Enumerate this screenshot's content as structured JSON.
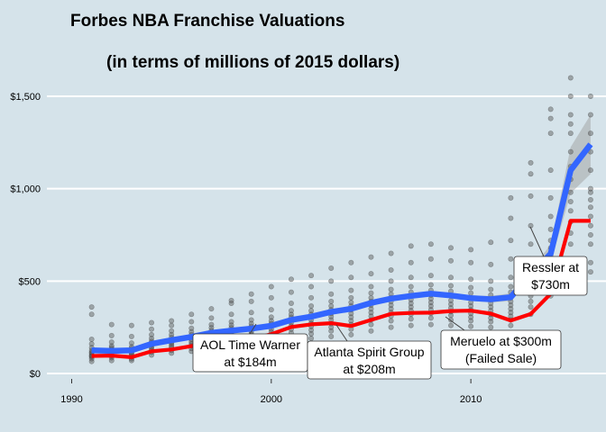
{
  "chart_data": {
    "type": "line",
    "title": "Forbes NBA Franchise Valuations",
    "subtitle": "(in terms of millions of 2015 dollars)",
    "xlabel": "",
    "ylabel": "",
    "xlim": [
      1990,
      2016.5
    ],
    "ylim": [
      0,
      1500
    ],
    "x_ticks": [
      1990,
      2000,
      2010
    ],
    "x_tick_labels": [
      "1990",
      "2000",
      "2010"
    ],
    "y_ticks": [
      0,
      500,
      1000,
      1500
    ],
    "y_tick_labels": [
      "$0",
      "$500",
      "$1,000",
      "$1,500"
    ],
    "grid": "horizontal",
    "legend": "none",
    "colors": {
      "background": "#d5e3ea",
      "grid": "#ffffff",
      "points": "#555555",
      "series_league": "#3366ff",
      "series_team": "#ff0000",
      "band": "#999999"
    },
    "series": [
      {
        "x": [
          1991,
          1992,
          1993,
          1994,
          1995,
          1996,
          1997,
          1998,
          1999,
          2000,
          2001,
          2002,
          2003,
          2004,
          2005,
          2006,
          2007,
          2008,
          2009,
          2010,
          2011,
          2012,
          2013,
          2014,
          2015,
          2016
        ],
        "values": [
          125,
          122,
          125,
          160,
          180,
          198,
          220,
          232,
          243,
          258,
          290,
          308,
          333,
          350,
          382,
          405,
          420,
          432,
          422,
          408,
          402,
          413,
          535,
          648,
          1100,
          1240
        ],
        "band_low": [
          110,
          108,
          112,
          146,
          166,
          184,
          206,
          218,
          229,
          244,
          276,
          294,
          319,
          336,
          368,
          391,
          406,
          418,
          408,
          394,
          384,
          392,
          505,
          600,
          975,
          1080
        ],
        "band_high": [
          140,
          136,
          138,
          174,
          194,
          212,
          234,
          246,
          257,
          272,
          304,
          322,
          347,
          364,
          396,
          419,
          434,
          446,
          436,
          422,
          420,
          434,
          565,
          696,
          1225,
          1400
        ]
      },
      {
        "x": [
          1991,
          1992,
          1993,
          1994,
          1995,
          1996,
          1997,
          1998,
          1999,
          2000,
          2001,
          2002,
          2003,
          2004,
          2005,
          2006,
          2007,
          2008,
          2009,
          2010,
          2011,
          2012,
          2013,
          2014,
          2015,
          2016
        ],
        "values": [
          95,
          97,
          88,
          120,
          130,
          148,
          170,
          185,
          184,
          213,
          252,
          266,
          272,
          257,
          290,
          323,
          328,
          329,
          338,
          340,
          324,
          287,
          322,
          432,
          826,
          826
        ]
      }
    ],
    "scatter": [
      {
        "x": 1991,
        "y": [
          65,
          80,
          90,
          95,
          100,
          110,
          115,
          125,
          140,
          160,
          185,
          320,
          360
        ]
      },
      {
        "x": 1992,
        "y": [
          70,
          85,
          95,
          100,
          110,
          120,
          130,
          140,
          150,
          170,
          205,
          265
        ]
      },
      {
        "x": 1993,
        "y": [
          70,
          80,
          90,
          100,
          108,
          115,
          125,
          135,
          145,
          165,
          200,
          260
        ]
      },
      {
        "x": 1994,
        "y": [
          100,
          115,
          125,
          135,
          145,
          155,
          165,
          175,
          190,
          210,
          240,
          275
        ]
      },
      {
        "x": 1995,
        "y": [
          110,
          125,
          140,
          150,
          160,
          170,
          180,
          195,
          210,
          230,
          260,
          285
        ]
      },
      {
        "x": 1996,
        "y": [
          120,
          135,
          150,
          160,
          172,
          185,
          198,
          210,
          225,
          245,
          280,
          320
        ]
      },
      {
        "x": 1997,
        "y": [
          140,
          155,
          170,
          185,
          195,
          208,
          220,
          232,
          248,
          265,
          300,
          350
        ]
      },
      {
        "x": 1998,
        "y": [
          145,
          165,
          180,
          195,
          210,
          222,
          235,
          248,
          262,
          280,
          320,
          380,
          395
        ]
      },
      {
        "x": 1999,
        "y": [
          150,
          170,
          185,
          200,
          215,
          228,
          240,
          255,
          270,
          290,
          330,
          390,
          430
        ]
      },
      {
        "x": 2000,
        "y": [
          160,
          180,
          195,
          210,
          225,
          240,
          255,
          270,
          285,
          305,
          345,
          410,
          470
        ]
      },
      {
        "x": 2001,
        "y": [
          170,
          200,
          220,
          240,
          258,
          275,
          290,
          305,
          320,
          340,
          380,
          440,
          510
        ]
      },
      {
        "x": 2002,
        "y": [
          190,
          215,
          235,
          255,
          272,
          290,
          305,
          320,
          340,
          365,
          410,
          470,
          530
        ]
      },
      {
        "x": 2003,
        "y": [
          200,
          230,
          250,
          270,
          290,
          308,
          325,
          345,
          365,
          390,
          430,
          500,
          570
        ]
      },
      {
        "x": 2004,
        "y": [
          210,
          240,
          265,
          285,
          305,
          325,
          345,
          365,
          385,
          410,
          450,
          520,
          600
        ]
      },
      {
        "x": 2005,
        "y": [
          230,
          265,
          290,
          310,
          330,
          350,
          370,
          390,
          410,
          435,
          470,
          540,
          630
        ]
      },
      {
        "x": 2006,
        "y": [
          250,
          285,
          310,
          330,
          350,
          370,
          390,
          410,
          430,
          455,
          500,
          560,
          650
        ]
      },
      {
        "x": 2007,
        "y": [
          260,
          295,
          320,
          340,
          360,
          380,
          400,
          420,
          440,
          470,
          520,
          600,
          690
        ]
      },
      {
        "x": 2008,
        "y": [
          265,
          300,
          325,
          345,
          365,
          385,
          405,
          425,
          450,
          480,
          530,
          620,
          700
        ]
      },
      {
        "x": 2009,
        "y": [
          260,
          290,
          315,
          335,
          355,
          375,
          395,
          420,
          445,
          475,
          520,
          610,
          680
        ]
      },
      {
        "x": 2010,
        "y": [
          255,
          285,
          305,
          325,
          345,
          365,
          385,
          410,
          435,
          465,
          510,
          600,
          670
        ]
      },
      {
        "x": 2011,
        "y": [
          250,
          280,
          300,
          320,
          340,
          360,
          380,
          400,
          425,
          455,
          500,
          590,
          710
        ]
      },
      {
        "x": 2012,
        "y": [
          260,
          290,
          310,
          330,
          350,
          370,
          390,
          410,
          440,
          470,
          520,
          620,
          720,
          840,
          950
        ]
      },
      {
        "x": 2013,
        "y": [
          320,
          360,
          390,
          420,
          450,
          480,
          510,
          540,
          580,
          620,
          700,
          800,
          960,
          1080,
          1140
        ]
      },
      {
        "x": 2014,
        "y": [
          420,
          480,
          520,
          560,
          600,
          640,
          680,
          720,
          780,
          850,
          950,
          1100,
          1300,
          1380,
          1430
        ]
      },
      {
        "x": 2015,
        "y": [
          700,
          760,
          820,
          880,
          930,
          980,
          1050,
          1120,
          1200,
          1300,
          1350,
          1400,
          1500,
          1600
        ]
      },
      {
        "x": 2016,
        "y": [
          550,
          600,
          700,
          750,
          800,
          850,
          900,
          940,
          980,
          1000,
          1100,
          1200,
          1300,
          1400,
          1500
        ]
      }
    ],
    "annotations": [
      {
        "lines": [
          "AOL Time Warner",
          "at $184m"
        ]
      },
      {
        "lines": [
          "Atlanta Spirit Group",
          "at $208m"
        ]
      },
      {
        "lines": [
          "Meruelo at $300m",
          "(Failed Sale)"
        ]
      },
      {
        "lines": [
          "Ressler at",
          "$730m"
        ]
      }
    ]
  }
}
